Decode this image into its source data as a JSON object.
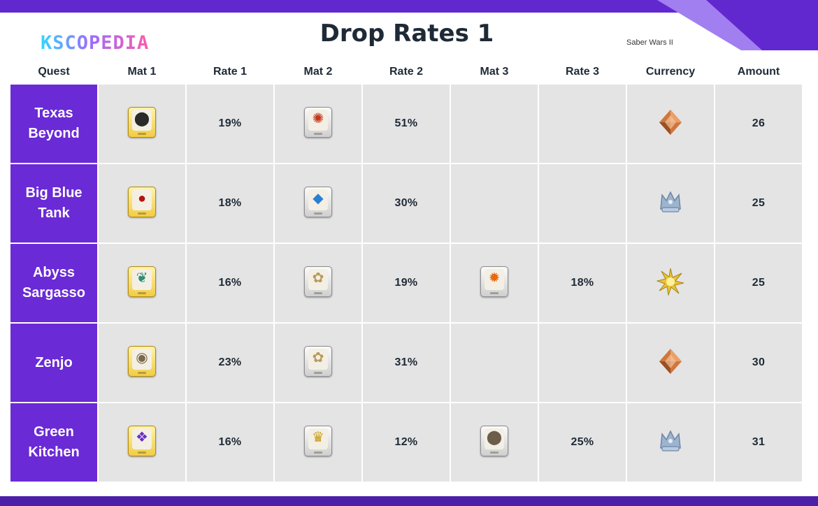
{
  "brand": {
    "logo_text": "KSCOPEDIA"
  },
  "header": {
    "title": "Drop Rates 1",
    "subtitle": "Saber Wars II"
  },
  "colors": {
    "accent": "#6228d0",
    "quest_cell": "#6a2ad6",
    "cell_bg": "#e4e4e4"
  },
  "table": {
    "columns": [
      "Quest",
      "Mat 1",
      "Rate 1",
      "Mat 2",
      "Rate 2",
      "Mat 3",
      "Rate 3",
      "Currency",
      "Amount"
    ],
    "rows": [
      {
        "quest": "Texas Beyond",
        "mat1": {
          "icon": "black-cauldron-material-icon",
          "frame": "gold",
          "glyph": "⬤",
          "color": "#2a2a2a"
        },
        "rate1": "19%",
        "mat2": {
          "icon": "red-orb-chain-material-icon",
          "frame": "silver",
          "glyph": "✺",
          "color": "#c2361c"
        },
        "rate2": "51%",
        "mat3": null,
        "rate3": "",
        "currency": "bronze-crystal-icon",
        "amount": "26"
      },
      {
        "quest": "Big Blue Tank",
        "mat1": {
          "icon": "red-blood-drop-material-icon",
          "frame": "gold",
          "glyph": "●",
          "color": "#b3150f"
        },
        "rate1": "18%",
        "mat2": {
          "icon": "blue-lantern-material-icon",
          "frame": "silver",
          "glyph": "◆",
          "color": "#2a7fd4"
        },
        "rate2": "30%",
        "mat3": null,
        "rate3": "",
        "currency": "silver-crown-icon",
        "amount": "25"
      },
      {
        "quest": "Abyss Sargasso",
        "mat1": {
          "icon": "feather-orb-material-icon",
          "frame": "gold",
          "glyph": "❦",
          "color": "#2c8d7a"
        },
        "rate1": "16%",
        "mat2": {
          "icon": "seashell-material-icon",
          "frame": "silver",
          "glyph": "✿",
          "color": "#b89a5a"
        },
        "rate2": "19%",
        "mat3": {
          "icon": "phoenix-flame-material-icon",
          "frame": "silver",
          "glyph": "✹",
          "color": "#e36a12"
        },
        "rate3": "18%",
        "currency": "gold-sun-crystal-icon",
        "amount": "25"
      },
      {
        "quest": "Zenjo",
        "mat1": {
          "icon": "gem-crown-material-icon",
          "frame": "gold",
          "glyph": "◉",
          "color": "#7a6a4a"
        },
        "rate1": "23%",
        "mat2": {
          "icon": "seashell-material-icon",
          "frame": "silver",
          "glyph": "✿",
          "color": "#b89a5a"
        },
        "rate2": "31%",
        "mat3": null,
        "rate3": "",
        "currency": "bronze-crystal-icon",
        "amount": "30"
      },
      {
        "quest": "Green Kitchen",
        "mat1": {
          "icon": "purple-crystal-material-icon",
          "frame": "gold",
          "glyph": "❖",
          "color": "#6b2fc2"
        },
        "rate1": "16%",
        "mat2": {
          "icon": "golden-bell-material-icon",
          "frame": "silver",
          "glyph": "♛",
          "color": "#c79a1a"
        },
        "rate2": "12%",
        "mat3": {
          "icon": "dark-stone-material-icon",
          "frame": "silver",
          "glyph": "⬤",
          "color": "#6b5e4a"
        },
        "rate3": "25%",
        "currency": "silver-crown-icon",
        "amount": "31"
      }
    ]
  }
}
